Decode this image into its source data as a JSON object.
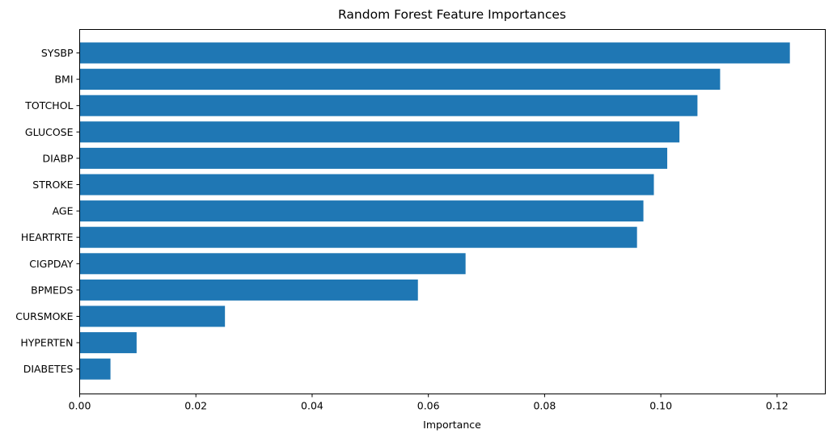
{
  "chart_data": {
    "type": "bar",
    "orientation": "horizontal",
    "title": "Random Forest Feature Importances",
    "xlabel": "Importance",
    "ylabel": "",
    "xlim": [
      0,
      0.1283
    ],
    "xticks": [
      0.0,
      0.02,
      0.04,
      0.06,
      0.08,
      0.1,
      0.12
    ],
    "xtick_labels": [
      "0.00",
      "0.02",
      "0.04",
      "0.06",
      "0.08",
      "0.10",
      "0.12"
    ],
    "categories": [
      "SYSBP",
      "BMI",
      "TOTCHOL",
      "GLUCOSE",
      "DIABP",
      "STROKE",
      "AGE",
      "HEARTRTE",
      "CIGPDAY",
      "BPMEDS",
      "CURSMOKE",
      "HYPERTEN",
      "DIABETES"
    ],
    "values": [
      0.1222,
      0.1102,
      0.1063,
      0.1032,
      0.1011,
      0.0988,
      0.097,
      0.0959,
      0.0664,
      0.0582,
      0.025,
      0.0098,
      0.0053
    ],
    "bar_color": "#1f77b4",
    "grid": false,
    "legend": "none"
  }
}
